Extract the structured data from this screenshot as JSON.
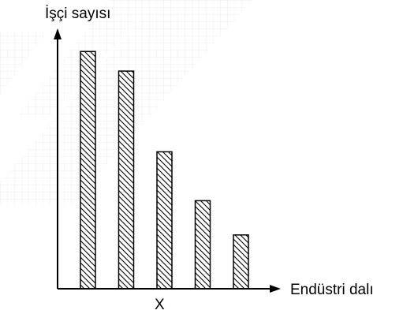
{
  "chart_data": {
    "type": "bar",
    "title": "",
    "ylabel": "İşçi sayısı",
    "xlabel": "Endüstri dalı",
    "categories": [
      "",
      "",
      "",
      "",
      ""
    ],
    "x_marker": "X",
    "values": [
      9.7,
      8.9,
      5.6,
      3.6,
      2.2
    ],
    "ylim": [
      0,
      11
    ],
    "grid": false,
    "legend": "none",
    "bar_fill": "diagonal-hatch",
    "bar_color": "#000000"
  },
  "colors": {
    "axis": "#000000",
    "watermark": "#d8d8d8"
  }
}
